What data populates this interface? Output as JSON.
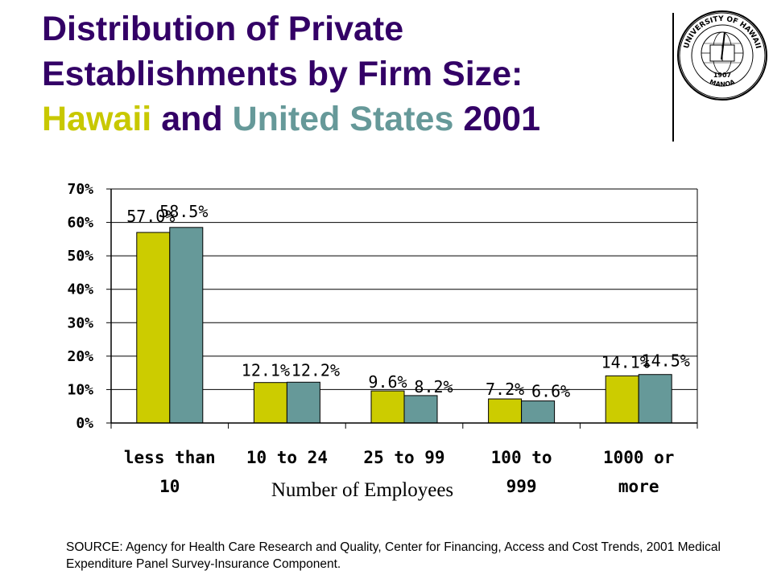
{
  "title": {
    "line1": "Distribution of Private",
    "line2": "Establishments by Firm Size:",
    "hawaii": "Hawaii",
    "and": "and",
    "us": "United States",
    "year": "2001"
  },
  "seal": {
    "top_text": "UNIVERSITY OF HAWAII",
    "year": "1907",
    "bottom_text": "MANOA"
  },
  "colors": {
    "title": "#330066",
    "hawaii": "#c8c800",
    "us": "#669999"
  },
  "chart_data": {
    "type": "bar",
    "categories": [
      [
        "less than",
        "10"
      ],
      [
        "10 to 24"
      ],
      [
        "25 to 99"
      ],
      [
        "100 to",
        "999"
      ],
      [
        "1000 or",
        "more"
      ]
    ],
    "series": [
      {
        "name": "Hawaii",
        "color": "#cccc00",
        "values": [
          57.0,
          12.1,
          9.6,
          7.2,
          14.1
        ],
        "labels": [
          "57.0%",
          "12.1%",
          "9.6%",
          "7.2%",
          "14.1%"
        ]
      },
      {
        "name": "United States",
        "color": "#669999",
        "values": [
          58.5,
          12.2,
          8.2,
          6.6,
          14.5
        ],
        "labels": [
          "58.5%",
          "12.2%",
          "8.2%",
          "6.6%",
          "14.5%"
        ]
      }
    ],
    "yticks": [
      "0%",
      "10%",
      "20%",
      "30%",
      "40%",
      "50%",
      "60%",
      "70%"
    ],
    "ylim": [
      0,
      70
    ],
    "xlabel": "Number of Employees",
    "ylabel": "",
    "grid": true,
    "legend": "none"
  },
  "source": "SOURCE: Agency for Health Care Research and Quality, Center for Financing, Access and Cost Trends, 2001 Medical Expenditure Panel Survey-Insurance Component."
}
